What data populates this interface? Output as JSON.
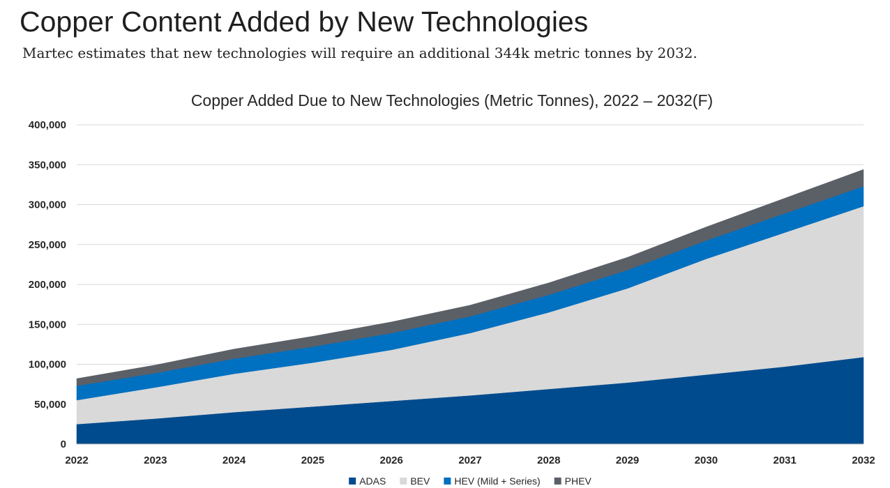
{
  "header": {
    "title": "Copper Content Added by New Technologies",
    "subtitle": "Martec estimates that new technologies will require an additional 344k metric tonnes by 2032."
  },
  "chart_data": {
    "type": "area",
    "stacked": true,
    "title": "Copper Added Due to New Technologies (Metric Tonnes), 2022 – 2032(F)",
    "xlabel": "",
    "ylabel": "",
    "categories": [
      "2022",
      "2023",
      "2024",
      "2025",
      "2026",
      "2027",
      "2028",
      "2029",
      "2030",
      "2031",
      "2032"
    ],
    "ylim": [
      0,
      400000
    ],
    "yticks": [
      0,
      50000,
      100000,
      150000,
      200000,
      250000,
      300000,
      350000,
      400000
    ],
    "ytick_labels": [
      "0",
      "50,000",
      "100,000",
      "150,000",
      "200,000",
      "250,000",
      "300,000",
      "350,000",
      "400,000"
    ],
    "grid": true,
    "legend_position": "bottom",
    "series": [
      {
        "name": "ADAS",
        "color": "#004b8d",
        "values": [
          25000,
          32000,
          40000,
          47000,
          54000,
          61000,
          69000,
          77000,
          87000,
          97000,
          109000
        ]
      },
      {
        "name": "BEV",
        "color": "#d9d9d9",
        "values": [
          30000,
          39000,
          48000,
          55000,
          64000,
          78000,
          96000,
          118000,
          145000,
          168000,
          189000
        ]
      },
      {
        "name": "HEV (Mild + Series)",
        "color": "#0070c0",
        "values": [
          18000,
          18000,
          19000,
          20000,
          21000,
          21000,
          22000,
          23000,
          23000,
          24000,
          25000
        ]
      },
      {
        "name": "PHEV",
        "color": "#5b6067",
        "values": [
          9000,
          10000,
          12000,
          13000,
          14000,
          14000,
          15000,
          16000,
          17000,
          19000,
          21000
        ]
      }
    ]
  }
}
